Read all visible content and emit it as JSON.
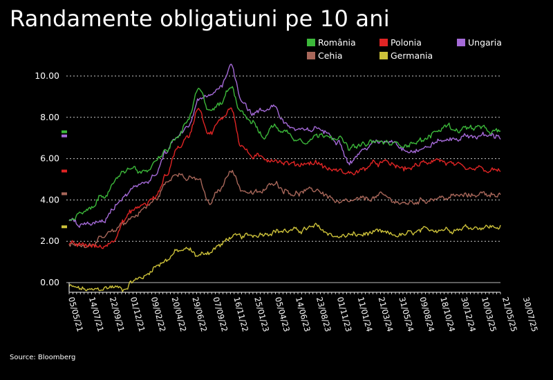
{
  "chart_data": {
    "type": "line",
    "title": "Randamente obligatiuni pe 10 ani",
    "source": "Source: Bloomberg",
    "ylim": [
      -0.5,
      11.0
    ],
    "yticks": [
      0,
      2,
      4,
      6,
      8,
      10
    ],
    "ytick_labels": [
      "0.00",
      "2.00",
      "4.00",
      "6.00",
      "8.00",
      "10.00"
    ],
    "grid": "horizontal dotted",
    "legend_position": "top-right",
    "x_tick_labels": [
      "05/05/21",
      "14/07/21",
      "22/09/21",
      "01/12/21",
      "09/02/22",
      "20/04/22",
      "29/06/22",
      "07/09/22",
      "16/11/22",
      "25/01/23",
      "05/04/23",
      "14/06/23",
      "23/08/23",
      "01/11/23",
      "11/01/24",
      "21/03/24",
      "31/05/24",
      "09/08/24",
      "18/10/24",
      "30/12/24",
      "10/03/25",
      "21/05/25",
      "30/07/25"
    ],
    "series": [
      {
        "name": "România",
        "color": "#3cb83a",
        "values": [
          3.0,
          3.3,
          3.5,
          4.2,
          4.6,
          5.4,
          5.6,
          5.3,
          5.8,
          6.4,
          7.0,
          7.8,
          9.3,
          8.4,
          8.6,
          9.5,
          8.3,
          7.8,
          7.0,
          7.6,
          7.3,
          7.0,
          6.9,
          7.1,
          7.2,
          7.0,
          6.5,
          6.6,
          6.8,
          6.8,
          6.7,
          6.7,
          6.8,
          6.9,
          7.3,
          7.6,
          7.4,
          7.5,
          7.5,
          7.3,
          7.3
        ]
      },
      {
        "name": "Polonia",
        "color": "#e02424",
        "values": [
          1.8,
          1.8,
          1.8,
          1.7,
          2.0,
          3.0,
          3.5,
          3.8,
          4.1,
          5.2,
          6.5,
          7.0,
          8.5,
          7.2,
          7.8,
          8.5,
          6.6,
          6.1,
          6.0,
          6.0,
          5.8,
          5.7,
          5.8,
          5.8,
          5.5,
          5.4,
          5.3,
          5.4,
          5.7,
          5.8,
          5.7,
          5.5,
          5.6,
          5.8,
          6.0,
          5.8,
          5.6,
          5.4,
          5.5,
          5.4,
          5.4
        ]
      },
      {
        "name": "Ungaria",
        "color": "#a56ad8",
        "values": [
          3.0,
          2.8,
          2.8,
          2.9,
          3.5,
          4.1,
          4.5,
          4.9,
          5.2,
          6.3,
          7.0,
          7.5,
          8.8,
          9.0,
          9.5,
          10.5,
          8.9,
          8.2,
          8.3,
          8.6,
          7.7,
          7.4,
          7.3,
          7.5,
          7.2,
          6.9,
          5.8,
          6.3,
          6.7,
          6.8,
          6.9,
          6.5,
          6.4,
          6.5,
          6.8,
          6.9,
          7.0,
          7.1,
          7.1,
          7.1,
          7.1
        ]
      },
      {
        "name": "Cehia",
        "color": "#a8675a",
        "values": [
          1.8,
          1.8,
          1.9,
          2.1,
          2.4,
          2.9,
          3.2,
          3.6,
          4.0,
          4.8,
          5.4,
          5.0,
          5.0,
          3.8,
          4.5,
          5.5,
          4.5,
          4.3,
          4.4,
          4.9,
          4.5,
          4.3,
          4.4,
          4.5,
          4.2,
          3.8,
          3.9,
          4.0,
          4.1,
          4.2,
          4.0,
          3.8,
          3.9,
          4.0,
          4.1,
          4.1,
          4.2,
          4.2,
          4.3,
          4.3,
          4.3
        ]
      },
      {
        "name": "Germania",
        "color": "#cdc23a",
        "values": [
          -0.2,
          -0.3,
          -0.4,
          -0.3,
          -0.2,
          -0.3,
          0.1,
          0.3,
          0.8,
          1.1,
          1.5,
          1.6,
          1.3,
          1.5,
          1.8,
          2.2,
          2.2,
          2.3,
          2.4,
          2.5,
          2.5,
          2.5,
          2.6,
          2.7,
          2.4,
          2.2,
          2.3,
          2.3,
          2.4,
          2.4,
          2.3,
          2.3,
          2.4,
          2.5,
          2.6,
          2.6,
          2.6,
          2.7,
          2.7,
          2.7,
          2.7
        ]
      }
    ]
  }
}
